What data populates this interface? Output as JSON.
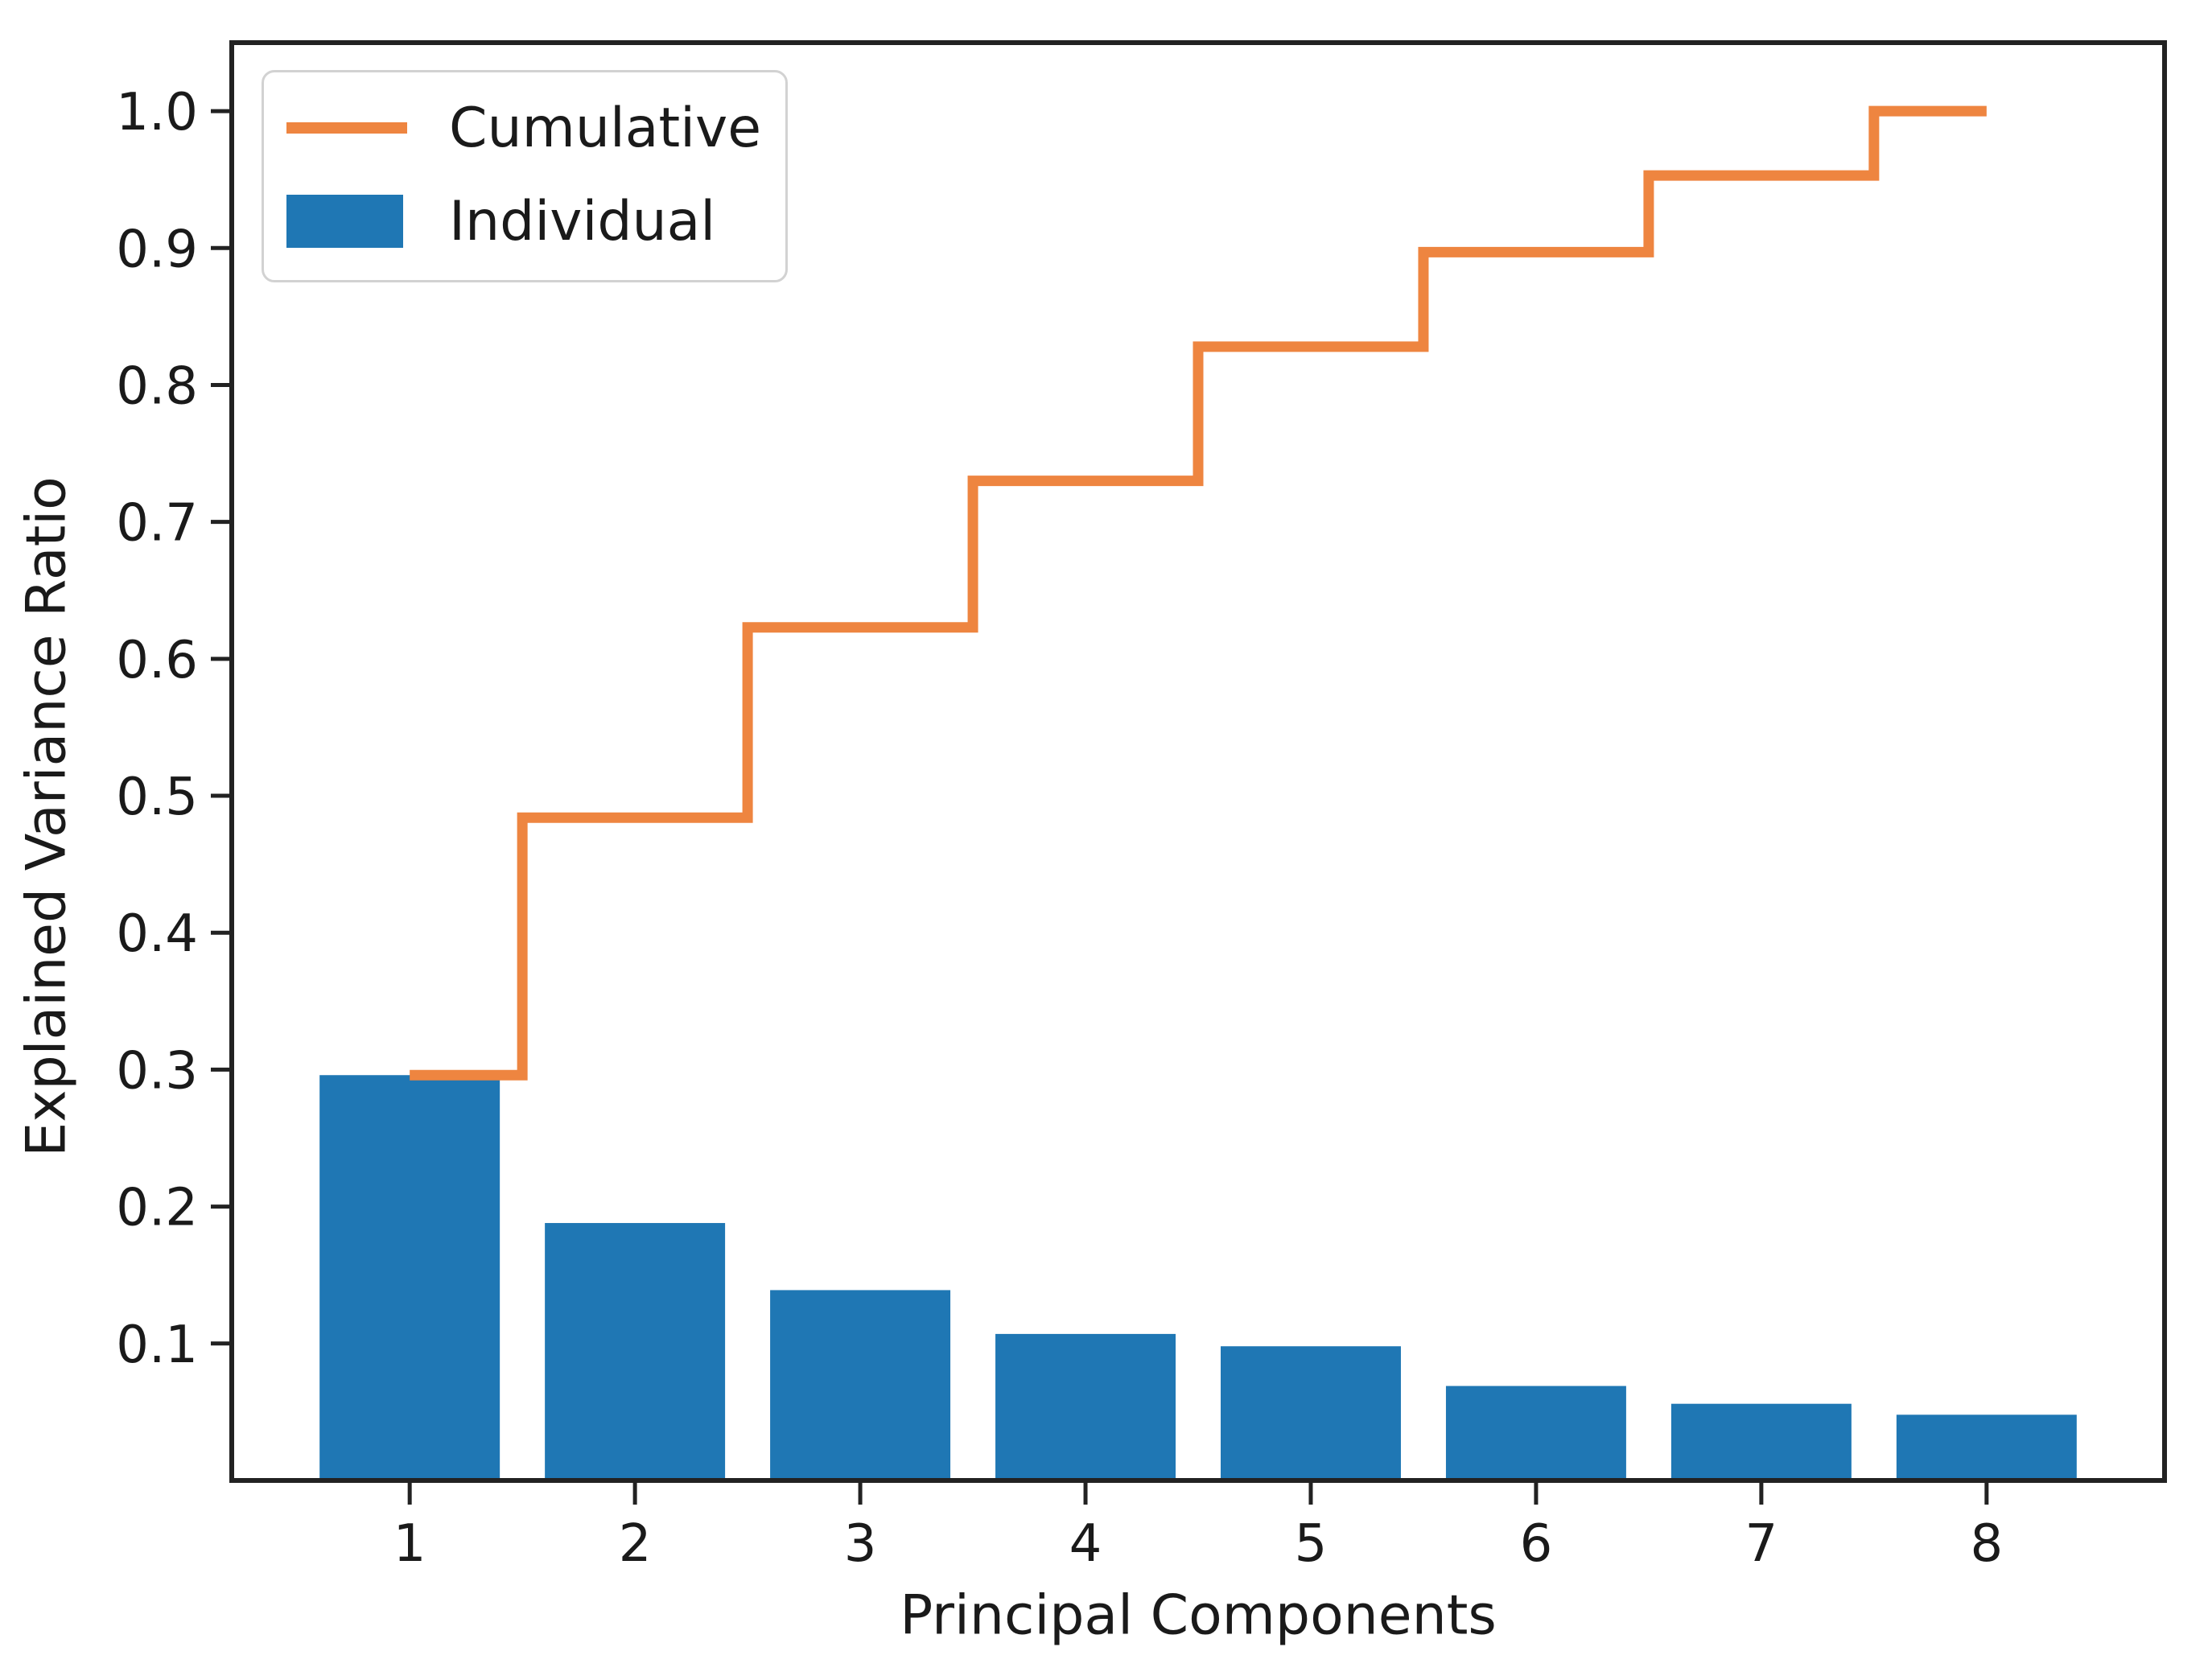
{
  "chart_data": {
    "type": "bar",
    "title": "",
    "xlabel": "Principal Components",
    "ylabel": "Explained Variance Ratio",
    "categories": [
      1,
      2,
      3,
      4,
      5,
      6,
      7,
      8
    ],
    "series": [
      {
        "name": "Individual",
        "kind": "bar",
        "color": "#1f77b4",
        "values": [
          0.296,
          0.188,
          0.139,
          0.107,
          0.098,
          0.069,
          0.056,
          0.048
        ]
      },
      {
        "name": "Cumulative",
        "kind": "step-line",
        "step_where": "mid",
        "color": "#ee8540",
        "values": [
          0.296,
          0.484,
          0.623,
          0.73,
          0.828,
          0.897,
          0.953,
          1.0
        ]
      }
    ],
    "xlim": [
      0.21,
      8.79
    ],
    "ylim": [
      0,
      1.05
    ],
    "yticks": [
      0.1,
      0.2,
      0.3,
      0.4,
      0.5,
      0.6,
      0.7,
      0.8,
      0.9,
      1.0
    ],
    "bar_width": 0.8,
    "grid": false,
    "legend": {
      "position": "upper-left",
      "entries": [
        "Cumulative",
        "Individual"
      ]
    }
  }
}
